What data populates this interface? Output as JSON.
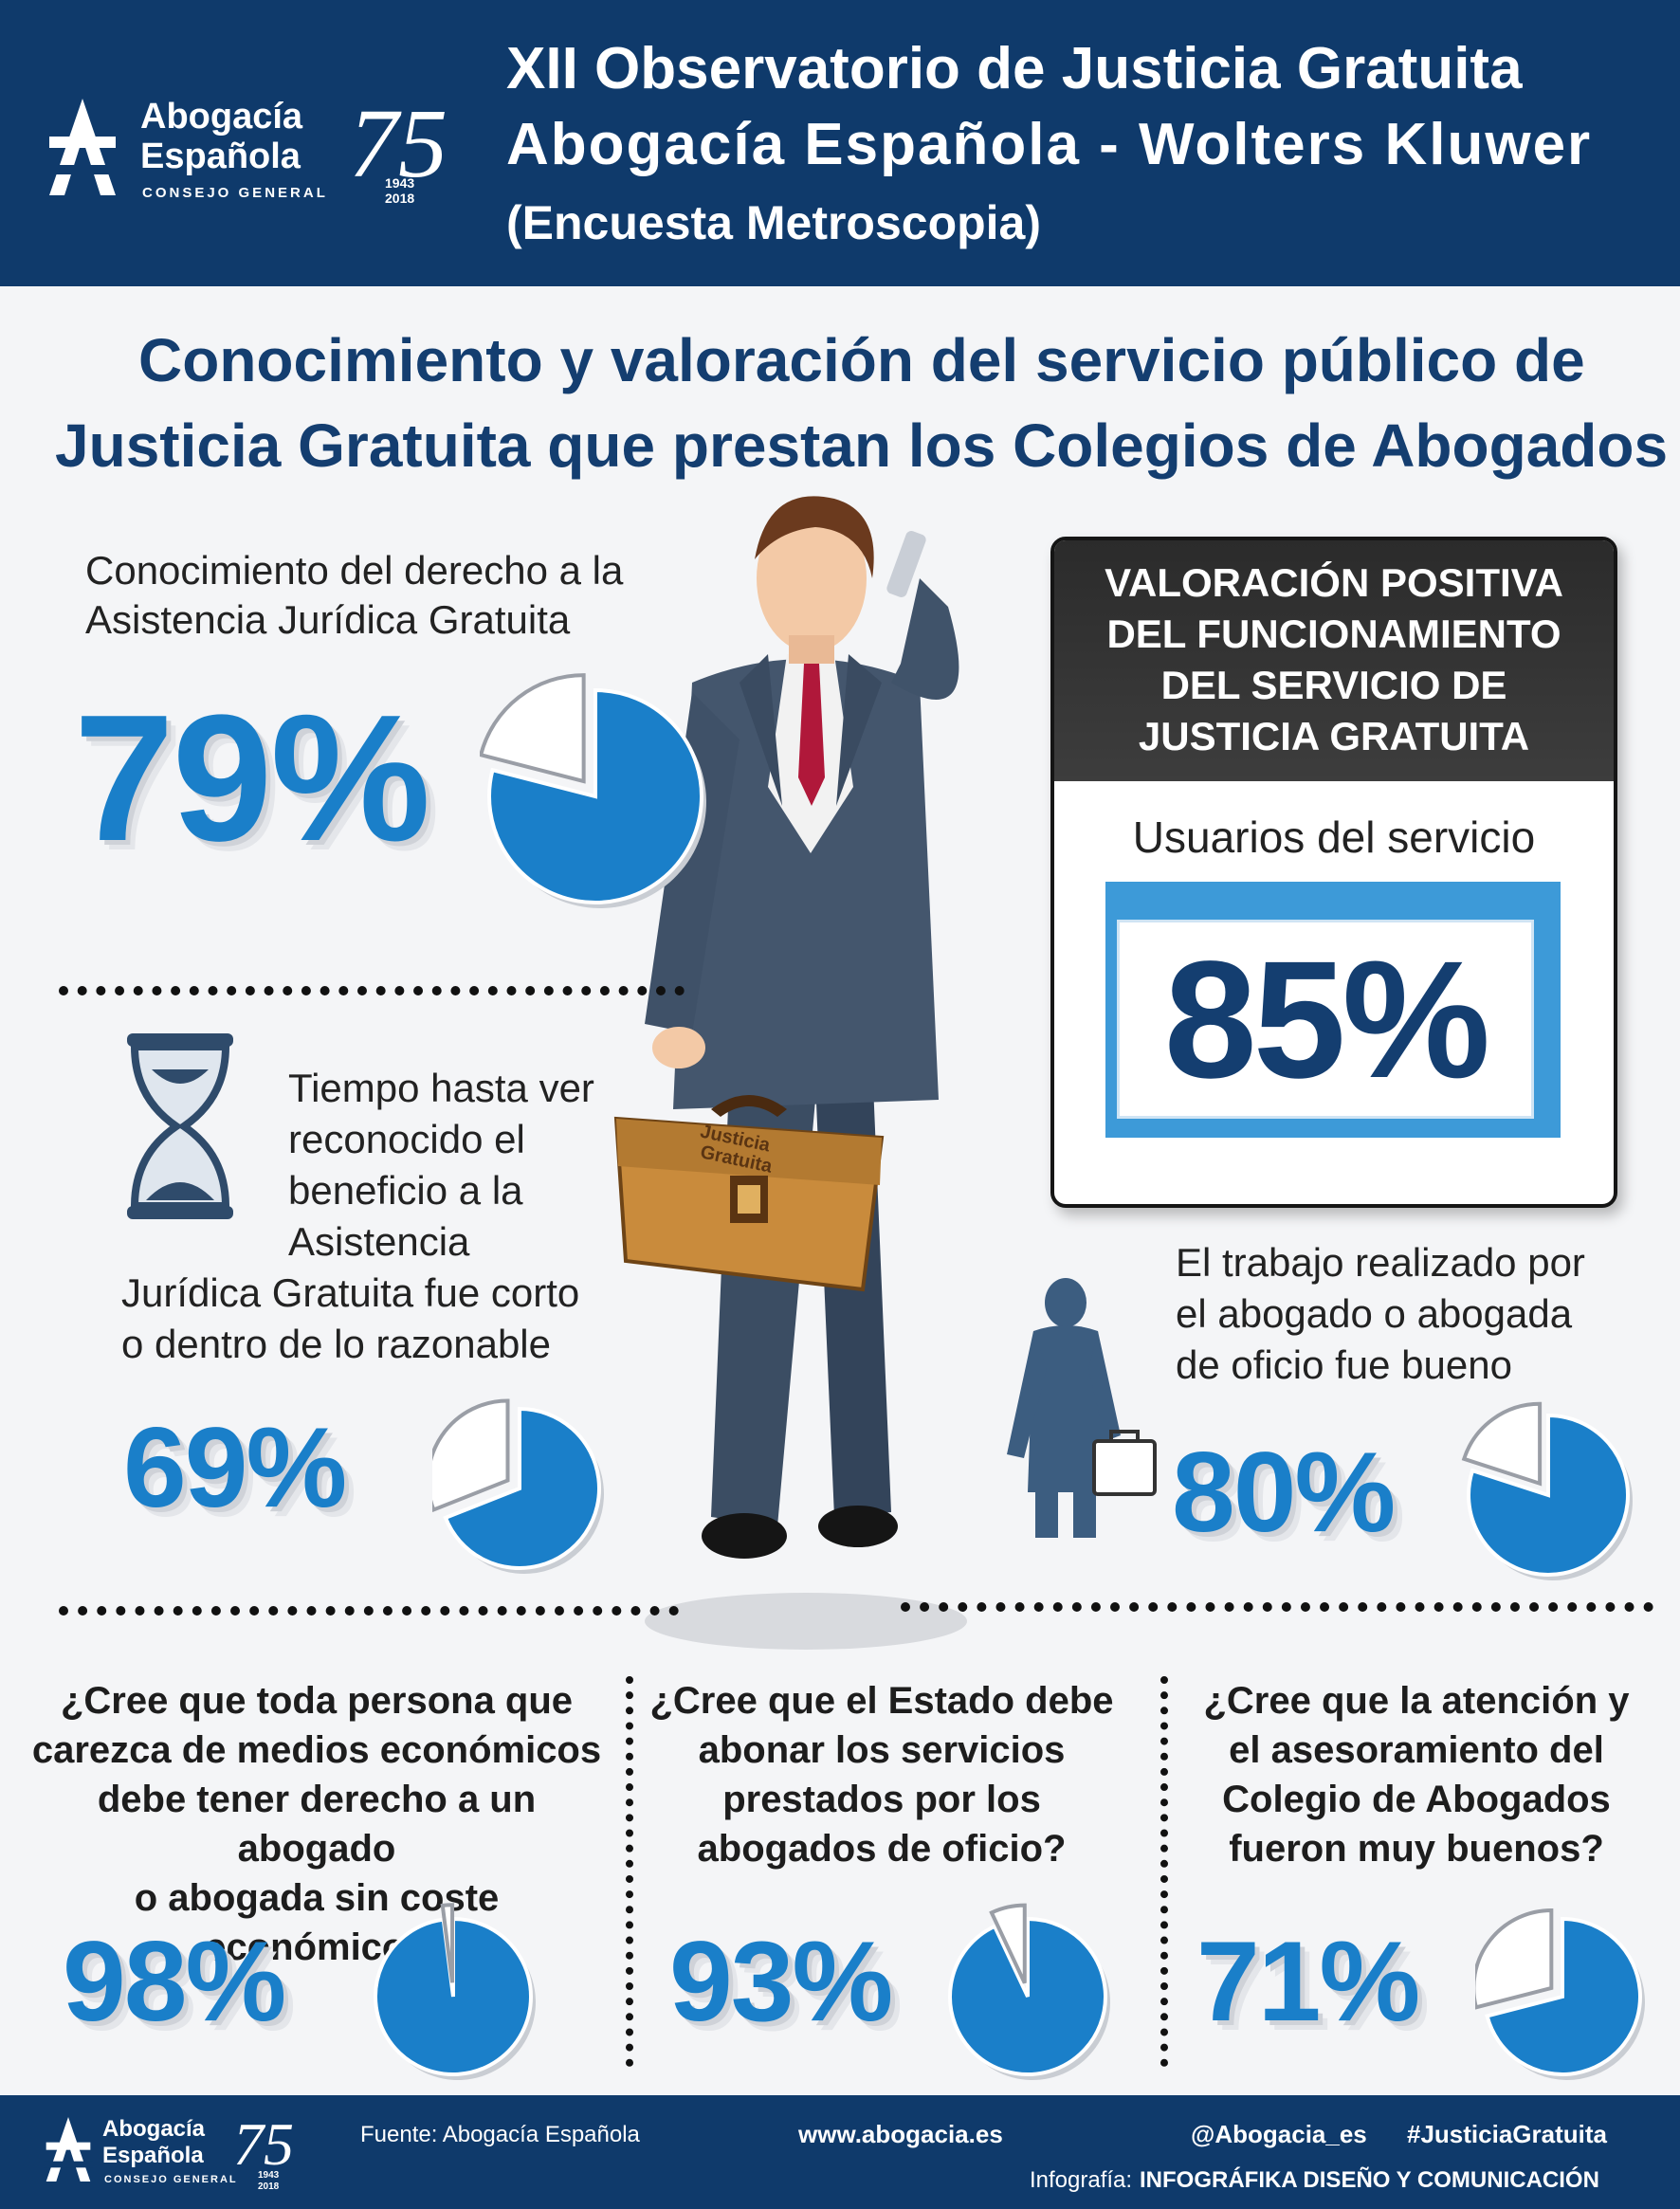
{
  "header": {
    "org_line1": "Abogacía",
    "org_line2": "Española",
    "org_sub": "CONSEJO GENERAL",
    "anniv_number": "75",
    "anniv_year1": "1943",
    "anniv_year2": "2018",
    "title1": "XII Observatorio de Justicia Gratuita",
    "title2": "Abogacía Española - Wolters Kluwer",
    "title3": "(Encuesta Metroscopia)"
  },
  "heading": {
    "line1": "Conocimiento y valoración del servicio público de",
    "line2": "Justicia Gratuita  que prestan los Colegios de Abogados"
  },
  "briefcase": {
    "line1": "Justicia",
    "line2": "Gratuita"
  },
  "valuation": {
    "head1": "VALORACIÓN POSITIVA",
    "head2": "DEL FUNCIONAMIENTO",
    "head3": "DEL SERVICIO DE",
    "head4": "JUSTICIA GRATUITA",
    "sub": "Usuarios del servicio",
    "pct": "85%"
  },
  "colors": {
    "navy": "#0f3a6b",
    "blue": "#1a7fc9",
    "dark": "#2b2b2b"
  },
  "chart_data": {
    "type": "pie",
    "items": [
      {
        "label": [
          "Conocimiento del derecho a la",
          "Asistencia Jurídica Gratuita"
        ],
        "value": 79,
        "display": "79%"
      },
      {
        "label": [
          "Tiempo hasta ver",
          "reconocido el",
          "beneficio a la",
          "Asistencia",
          "Jurídica Gratuita fue corto",
          "o dentro de lo razonable"
        ],
        "value": 69,
        "display": "69%"
      },
      {
        "label": [
          "El trabajo realizado por",
          "el abogado o abogada",
          "de oficio fue bueno"
        ],
        "value": 80,
        "display": "80%"
      },
      {
        "label": [
          "¿Cree que toda persona que",
          "carezca de medios económicos",
          "debe tener derecho a un abogado",
          "o abogada sin coste económico?"
        ],
        "value": 98,
        "display": "98%"
      },
      {
        "label": [
          "¿Cree que el Estado debe",
          "abonar los servicios",
          "prestados por los",
          "abogados de oficio?"
        ],
        "value": 93,
        "display": "93%"
      },
      {
        "label": [
          "¿Cree que la atención y",
          "el asesoramiento del",
          "Colegio de Abogados",
          "fueron muy buenos?"
        ],
        "value": 71,
        "display": "71%"
      }
    ],
    "highlight": {
      "label": "Usuarios del servicio",
      "value": 85,
      "display": "85%"
    }
  },
  "footer": {
    "source": "Fuente: Abogacía Española",
    "website": "www.abogacia.es",
    "twitter": "@Abogacia_es",
    "hashtag": "#JusticiaGratuita",
    "credit_prefix": "Infografía:",
    "credit_name": "INFOGRÁFIKA DISEÑO Y COMUNICACIÓN"
  }
}
